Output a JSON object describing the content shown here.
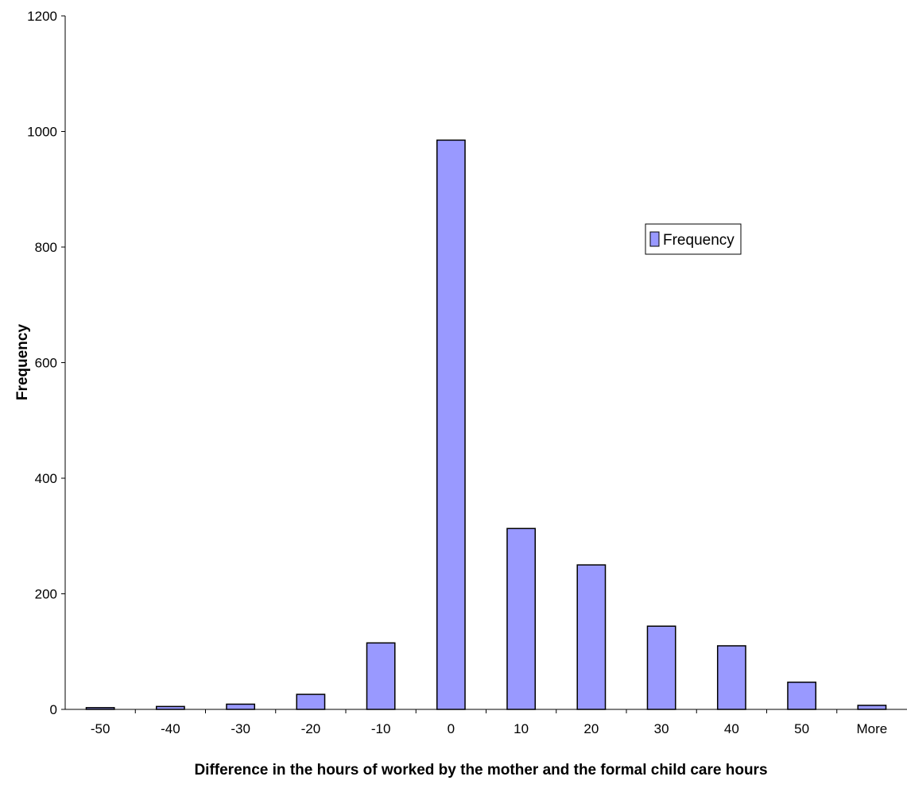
{
  "chart_data": {
    "type": "bar",
    "title": "",
    "xlabel": "Difference in the hours of worked by the mother and the formal child care hours",
    "ylabel": "Frequency",
    "categories": [
      "-50",
      "-40",
      "-30",
      "-20",
      "-10",
      "0",
      "10",
      "20",
      "30",
      "40",
      "50",
      "More"
    ],
    "series": [
      {
        "name": "Frequency",
        "values": [
          3,
          5,
          9,
          26,
          115,
          985,
          313,
          250,
          144,
          110,
          47,
          7
        ]
      }
    ],
    "ylim": [
      0,
      1200
    ],
    "yticks": [
      0,
      200,
      400,
      600,
      800,
      1000,
      1200
    ],
    "grid": false,
    "legend_position": "right",
    "colors": {
      "bar_fill": "#9999ff",
      "bar_stroke": "#000000",
      "axis": "#000000"
    }
  }
}
